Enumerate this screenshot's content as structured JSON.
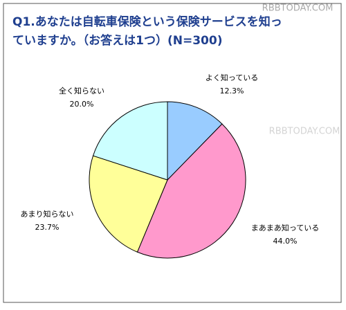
{
  "chart_data": {
    "type": "pie",
    "title": [
      "Q1.あなたは自転車保険という保険サービスを知っ",
      "ていますか。（お答えは1つ）(N=300)"
    ],
    "watermarks": [
      "RBBTODAY.COM",
      "RBBTODAY.COM"
    ],
    "categories": [
      "よく知っている",
      "まあまあ知っている",
      "あまり知らない",
      "全く知らない"
    ],
    "values": [
      12.3,
      44.0,
      23.7,
      20.0
    ],
    "value_labels": [
      "12.3%",
      "44.0%",
      "23.7%",
      "20.0%"
    ],
    "colors": [
      "#99ccff",
      "#ff99cc",
      "#ffff99",
      "#ccffff"
    ]
  }
}
